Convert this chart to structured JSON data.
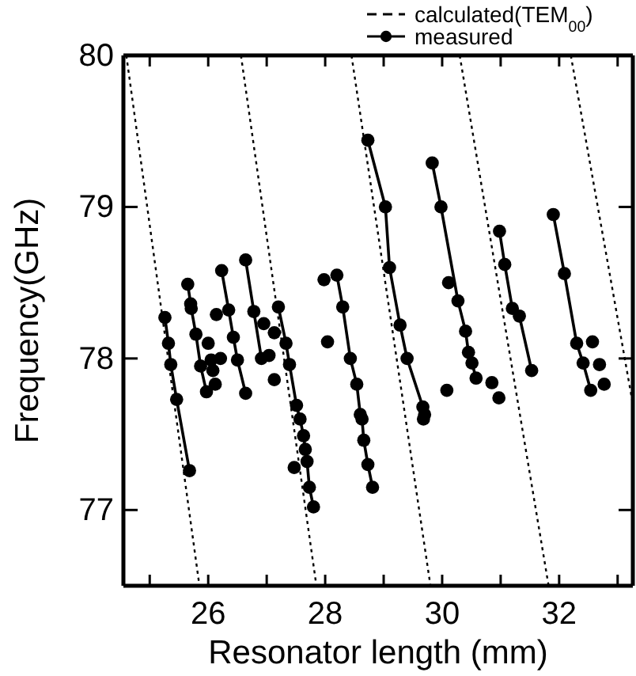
{
  "chart_data": {
    "type": "line",
    "xlabel": "Resonator length (mm)",
    "ylabel": "Frequency(GHz)",
    "xlim": [
      24.55,
      33.26
    ],
    "ylim": [
      76.5,
      80
    ],
    "xticks": [
      {
        "value": 25,
        "label": null
      },
      26,
      {
        "value": 27,
        "label": null
      },
      28,
      {
        "value": 29,
        "label": null
      },
      30,
      {
        "value": 31,
        "label": null
      },
      32,
      {
        "value": 33,
        "label": null
      }
    ],
    "yticks": [
      77,
      78,
      79,
      80
    ],
    "grid": false,
    "legend": "top right",
    "series": [
      {
        "name": "calculated(TEM$_{00}$)",
        "color": "#000000",
        "line_style": "dotted",
        "marker": "none",
        "x": [
          24.6,
          25.85
        ],
        "values": [
          80,
          76.5
        ]
      },
      {
        "color": "#000000",
        "line_style": "dotted",
        "marker": "none",
        "x": [
          26.56,
          27.85
        ],
        "values": [
          80,
          76.5
        ]
      },
      {
        "color": "#000000",
        "line_style": "dotted",
        "marker": "none",
        "x": [
          28.45,
          29.8
        ],
        "values": [
          80,
          76.5
        ]
      },
      {
        "color": "#000000",
        "line_style": "dotted",
        "marker": "none",
        "x": [
          30.3,
          31.82
        ],
        "values": [
          80,
          76.5
        ]
      },
      {
        "color": "#000000",
        "line_style": "dotted",
        "marker": "none",
        "x": [
          32.2,
          33.26
        ],
        "values": [
          80,
          77.7
        ]
      },
      {
        "name": "measured",
        "color": "#000000",
        "line_style": "solid",
        "marker": "circle",
        "x": [
          25.26,
          25.32,
          25.36,
          25.46,
          25.68
        ],
        "values": [
          78.27,
          78.1,
          77.96,
          77.73,
          77.26
        ]
      },
      {
        "color": "#000000",
        "line_style": "solid",
        "marker": "circle",
        "x": [
          25.65,
          25.7,
          25.71,
          25.79,
          25.87,
          25.97
        ],
        "values": [
          78.49,
          78.36,
          78.33,
          78.16,
          77.95,
          77.78
        ]
      },
      {
        "color": "#000000",
        "line_style": "solid",
        "marker": "circle",
        "x": [
          26.23,
          26.35,
          26.43,
          26.5,
          26.64
        ],
        "values": [
          78.58,
          78.32,
          78.14,
          77.99,
          77.77
        ]
      },
      {
        "color": "#000000",
        "line_style": "solid",
        "marker": "circle",
        "x": [
          26.64,
          26.78,
          26.91
        ],
        "values": [
          78.65,
          78.31,
          78.0
        ]
      },
      {
        "color": "#000000",
        "line_style": "solid",
        "marker": "circle",
        "x": [
          27.2,
          27.33,
          27.39,
          27.51,
          27.57,
          27.63,
          27.66,
          27.69,
          27.73,
          27.8
        ],
        "values": [
          78.34,
          78.1,
          77.96,
          77.69,
          77.6,
          77.49,
          77.4,
          77.32,
          77.15,
          77.02
        ]
      },
      {
        "color": "#000000",
        "line_style": "solid",
        "marker": "circle",
        "x": [
          28.2,
          28.3,
          28.43,
          28.54,
          28.6,
          28.63,
          28.66,
          28.73,
          28.81
        ],
        "values": [
          78.55,
          78.34,
          78.0,
          77.83,
          77.63,
          77.6,
          77.46,
          77.3,
          77.15
        ]
      },
      {
        "color": "#000000",
        "line_style": "solid",
        "marker": "circle",
        "x": [
          28.73,
          29.03,
          29.1,
          29.28,
          29.4,
          29.67,
          29.7,
          29.68
        ],
        "values": [
          79.44,
          79.0,
          78.6,
          78.22,
          78.0,
          77.68,
          77.63,
          77.6
        ]
      },
      {
        "color": "#000000",
        "line_style": "solid",
        "marker": "circle",
        "x": [
          29.83,
          29.98,
          30.27,
          30.4,
          30.45,
          30.51,
          30.58
        ],
        "values": [
          79.29,
          79.0,
          78.38,
          78.18,
          78.04,
          77.97,
          77.87
        ]
      },
      {
        "color": "#000000",
        "line_style": "solid",
        "marker": "circle",
        "x": [
          30.98,
          31.07,
          31.2,
          31.32,
          31.53
        ],
        "values": [
          78.84,
          78.62,
          78.33,
          78.28,
          77.92
        ]
      },
      {
        "color": "#000000",
        "line_style": "solid",
        "marker": "circle",
        "x": [
          31.9,
          32.09,
          32.3,
          32.41,
          32.54
        ],
        "values": [
          78.95,
          78.56,
          78.1,
          77.97,
          77.79
        ]
      },
      {
        "type": "scatter",
        "color": "#000000",
        "marker": "circle",
        "x": [
          26.0,
          26.05,
          26.08,
          26.12,
          26.14,
          26.21,
          26.95,
          27.04,
          27.13,
          27.13,
          27.47,
          27.98,
          28.04,
          30.11,
          30.08,
          30.85,
          30.97,
          32.57,
          32.69,
          32.77
        ],
        "values": [
          78.1,
          77.99,
          77.92,
          77.83,
          78.29,
          78.0,
          78.23,
          78.02,
          77.86,
          78.17,
          77.28,
          78.52,
          78.11,
          78.5,
          77.79,
          77.84,
          77.74,
          78.11,
          77.96,
          77.83
        ]
      }
    ]
  }
}
